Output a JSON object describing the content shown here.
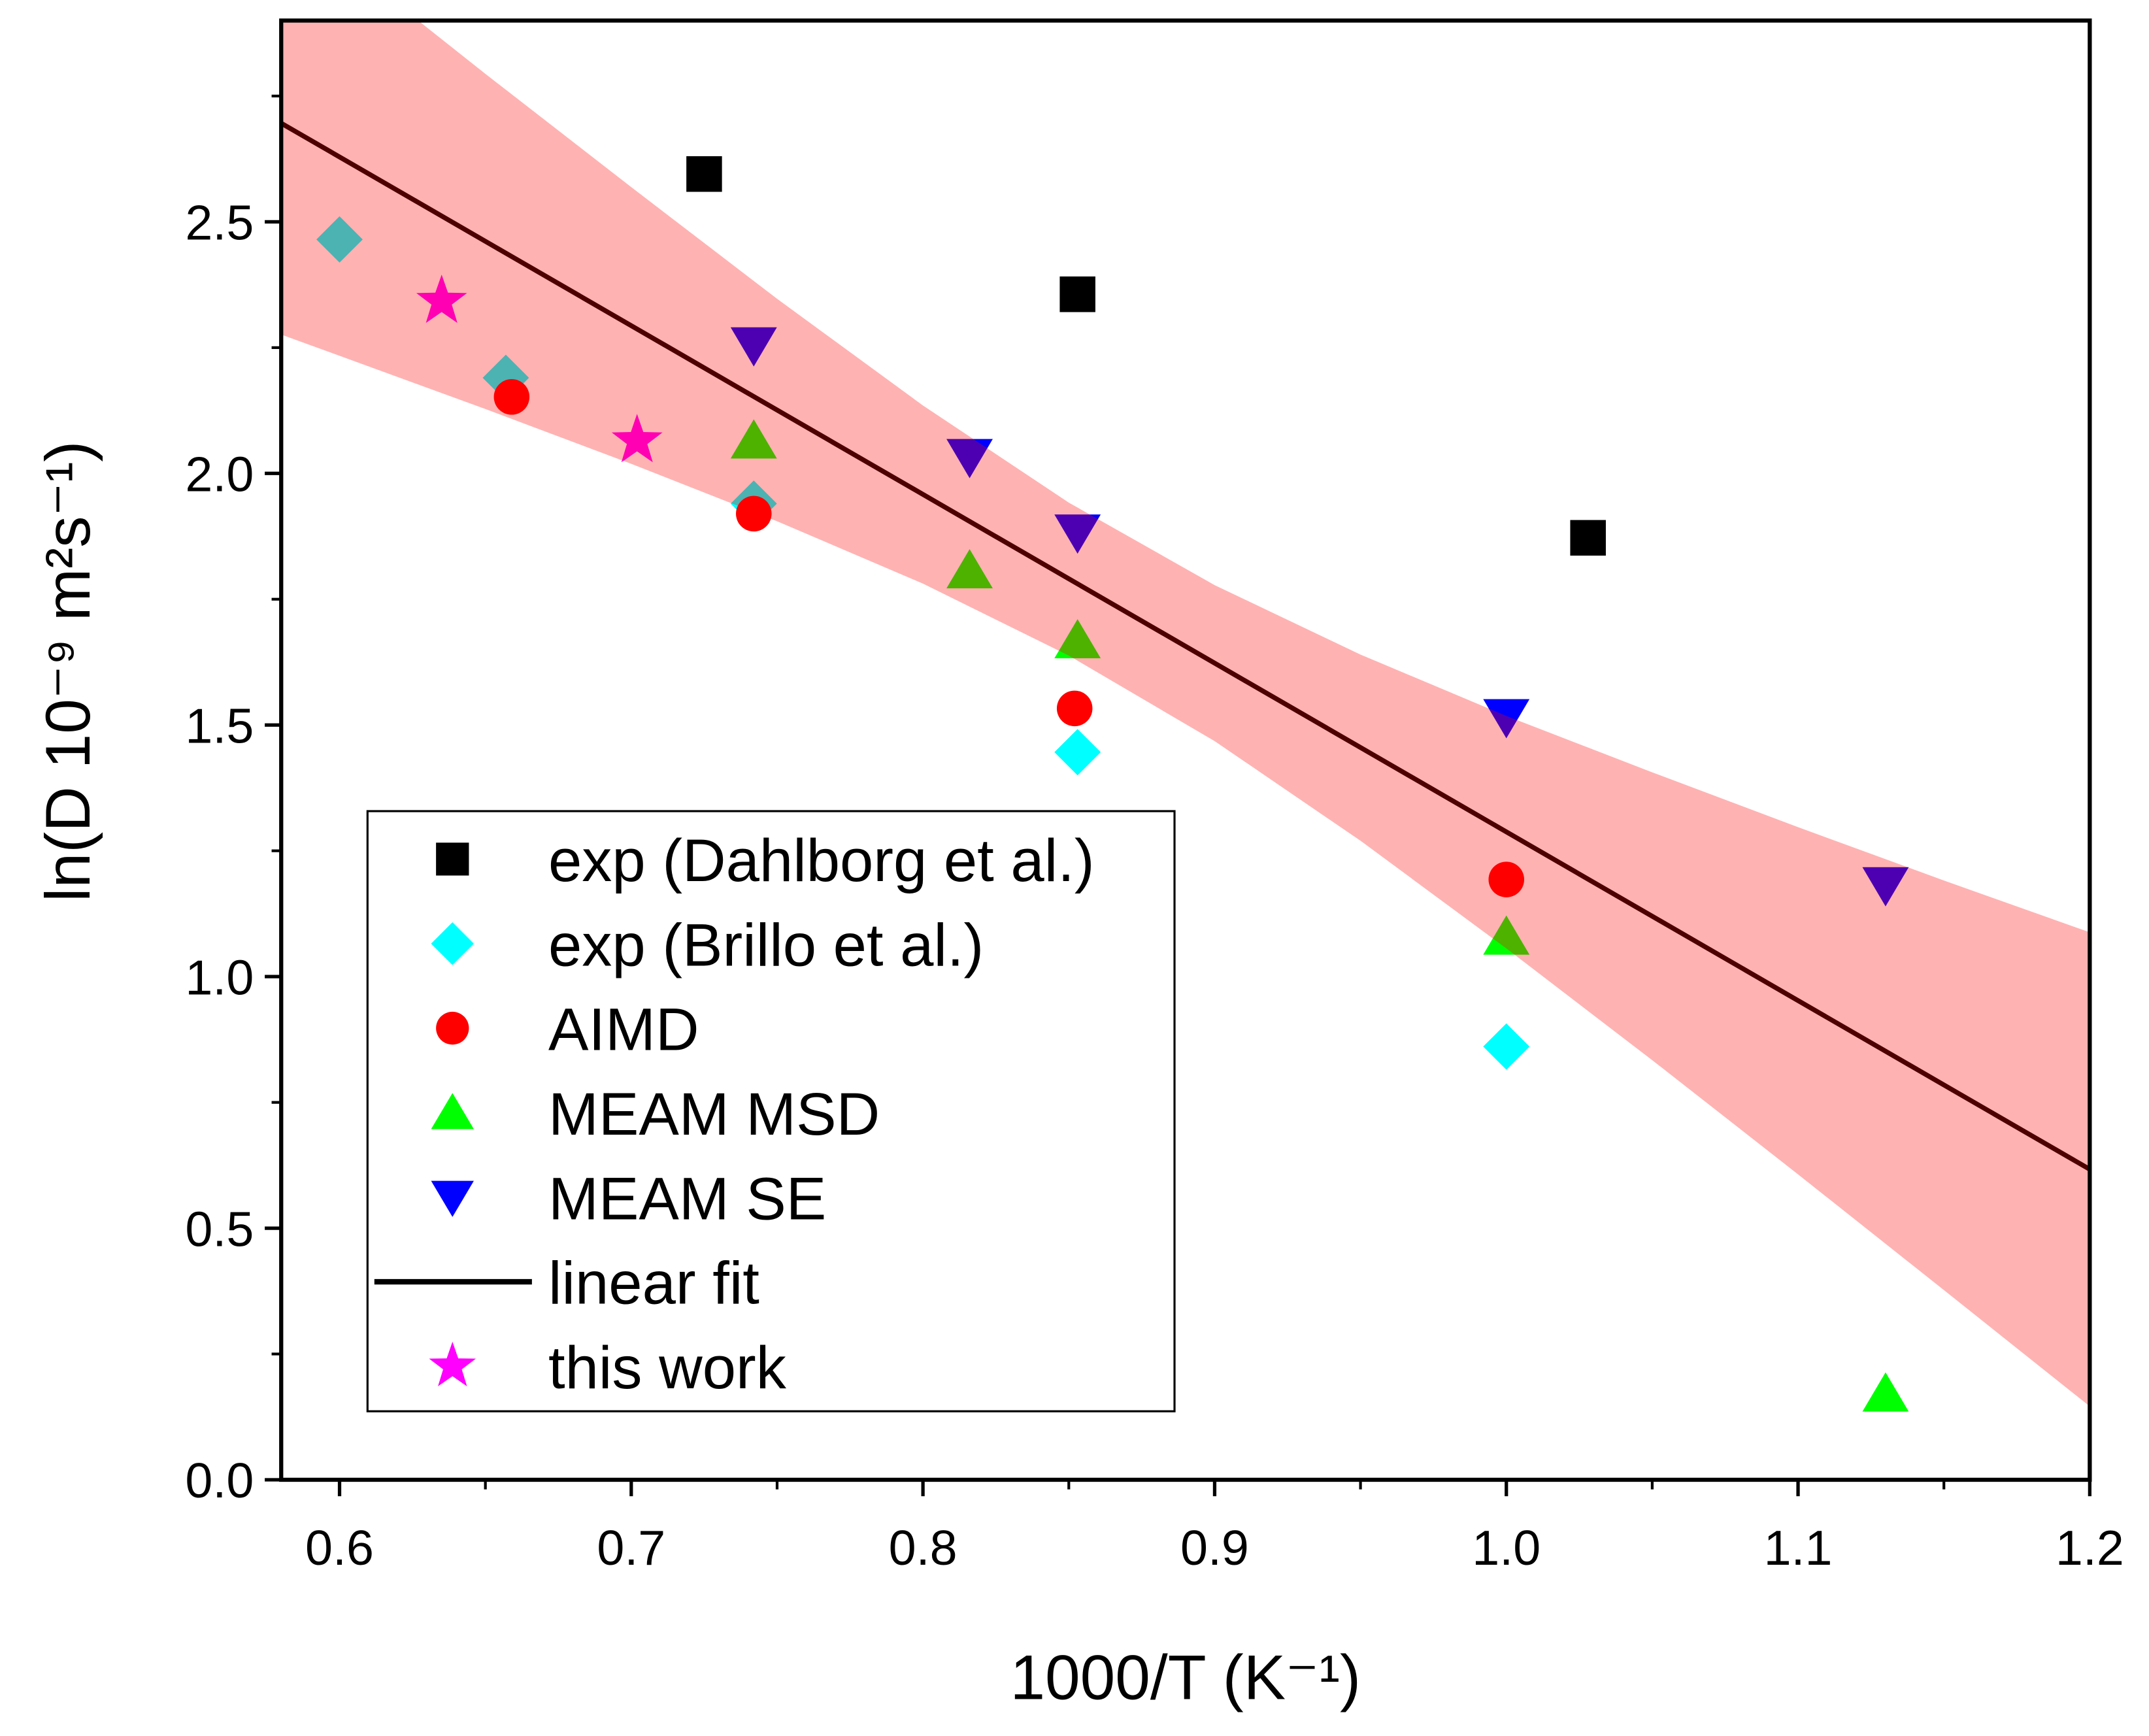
{
  "chart_data": {
    "type": "scatter",
    "title": "",
    "xlabel": "1000/T (K⁻¹)",
    "ylabel": "ln(D 10⁻⁹ m²s⁻¹)",
    "xlim": [
      0.58,
      1.2
    ],
    "ylim": [
      0.0,
      2.9
    ],
    "xticks": [
      "0.6",
      "0.7",
      "0.8",
      "0.9",
      "1.0",
      "1.1",
      "1.2"
    ],
    "yticks": [
      "0.0",
      "0.5",
      "1.0",
      "1.5",
      "2.0",
      "2.5"
    ],
    "grid": false,
    "legend_position": "bottom-left",
    "series": [
      {
        "name": "exp (Dahlborg et al.)",
        "marker": "square",
        "color": "#000000",
        "x": [
          0.725,
          0.853,
          1.028
        ],
        "y": [
          2.595,
          2.356,
          1.872
        ]
      },
      {
        "name": "exp (Brillo et al.)",
        "marker": "diamond",
        "color": "#00ffff",
        "x": [
          0.6,
          0.657,
          0.742,
          0.853,
          1.0
        ],
        "y": [
          2.465,
          2.19,
          1.94,
          1.446,
          0.861
        ]
      },
      {
        "name": "AIMD",
        "marker": "circle",
        "color": "#ff0000",
        "x": [
          0.659,
          0.742,
          0.852,
          1.0
        ],
        "y": [
          2.152,
          1.92,
          1.533,
          1.193
        ]
      },
      {
        "name": "MEAM MSD",
        "marker": "triangle-up",
        "color": "#00ff00",
        "x": [
          0.742,
          0.816,
          0.853,
          1.0,
          1.13
        ],
        "y": [
          2.065,
          1.807,
          1.668,
          1.079,
          0.171
        ]
      },
      {
        "name": "MEAM SE",
        "marker": "triangle-down",
        "color": "#0000ff",
        "x": [
          0.742,
          0.816,
          0.853,
          1.0,
          1.13
        ],
        "y": [
          2.255,
          2.033,
          1.883,
          1.516,
          1.182
        ]
      },
      {
        "name": "linear fit",
        "marker": "line",
        "color": "#000000",
        "x": [
          0.58,
          1.2
        ],
        "y": [
          2.696,
          0.617
        ]
      },
      {
        "name": "this work",
        "marker": "star",
        "color": "#ff00ff",
        "x": [
          0.635,
          0.702
        ],
        "y": [
          2.342,
          2.065
        ]
      }
    ],
    "confidence_band": {
      "color": "#ff0000",
      "opacity": 0.3,
      "x": [
        0.58,
        0.65,
        0.7,
        0.75,
        0.8,
        0.85,
        0.9,
        0.95,
        1.0,
        1.05,
        1.1,
        1.15,
        1.2
      ],
      "upper": [
        3.116,
        2.794,
        2.569,
        2.347,
        2.135,
        1.942,
        1.778,
        1.64,
        1.518,
        1.406,
        1.297,
        1.191,
        1.088
      ],
      "lower": [
        2.276,
        2.128,
        2.019,
        1.905,
        1.781,
        1.638,
        1.468,
        1.27,
        1.056,
        0.834,
        0.607,
        0.377,
        0.146
      ]
    }
  }
}
